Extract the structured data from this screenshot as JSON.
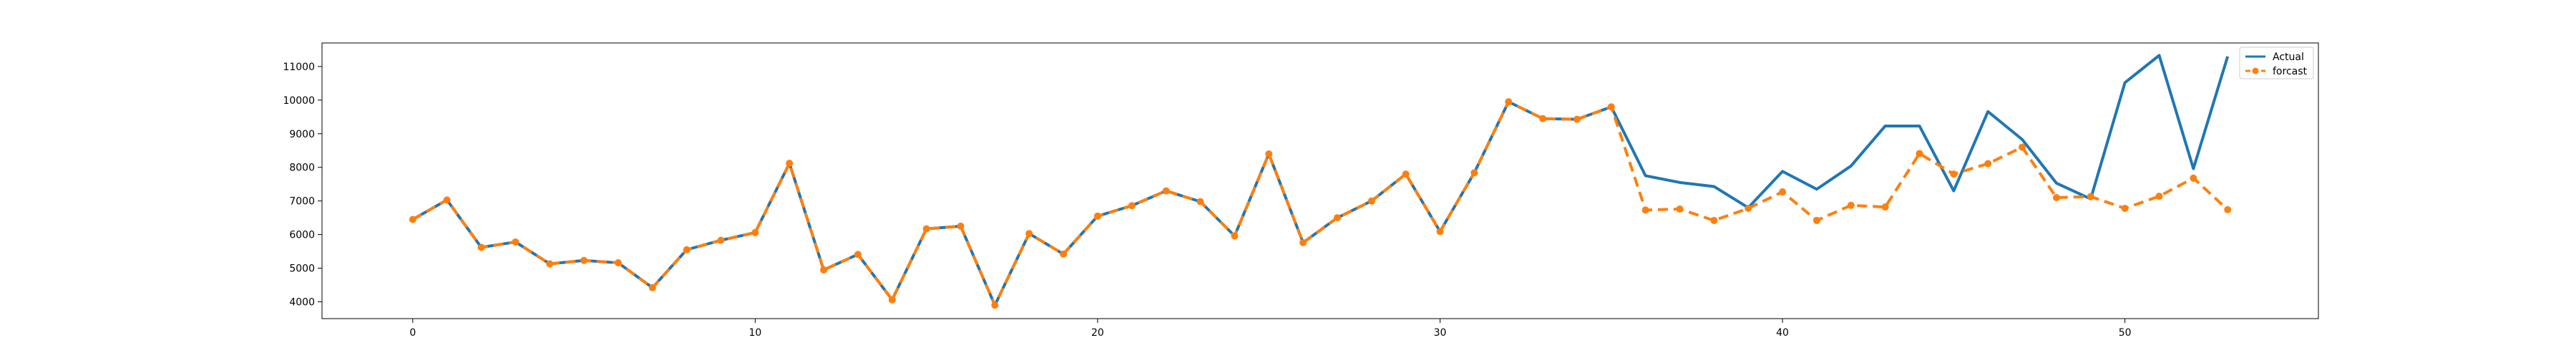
{
  "chart_data": {
    "type": "line",
    "title": "",
    "xlabel": "",
    "ylabel": "",
    "x": [
      0,
      1,
      2,
      3,
      4,
      5,
      6,
      7,
      8,
      9,
      10,
      11,
      12,
      13,
      14,
      15,
      16,
      17,
      18,
      19,
      20,
      21,
      22,
      23,
      24,
      25,
      26,
      27,
      28,
      29,
      30,
      31,
      32,
      33,
      34,
      35,
      36,
      37,
      38,
      39,
      40,
      41,
      42,
      43,
      44,
      45,
      46,
      47,
      48,
      49,
      50,
      51,
      52,
      53
    ],
    "xlim": [
      -2.65,
      55.65
    ],
    "ylim": [
      3500,
      11700
    ],
    "xticks": [
      0,
      10,
      20,
      30,
      40,
      50
    ],
    "yticks": [
      4000,
      5000,
      6000,
      7000,
      8000,
      9000,
      10000,
      11000
    ],
    "grid": false,
    "legend_position": "top-right",
    "series": [
      {
        "name": "Actual",
        "color": "#1f77b4",
        "style": "solid",
        "values": [
          6450,
          7030,
          5620,
          5780,
          5130,
          5230,
          5160,
          4420,
          5550,
          5830,
          6060,
          8120,
          4950,
          5410,
          4060,
          6170,
          6250,
          3900,
          6030,
          5420,
          6550,
          6860,
          7300,
          6980,
          5960,
          8400,
          5760,
          6500,
          7000,
          7800,
          6090,
          7840,
          9950,
          9450,
          9430,
          9800,
          7750,
          7550,
          7430,
          6800,
          7880,
          7350,
          8040,
          9230,
          9230,
          7300,
          9660,
          8830,
          7530,
          7060,
          10520,
          11330,
          7960,
          11300
        ]
      },
      {
        "name": "forcast",
        "color": "#ff7f0e",
        "style": "dashed",
        "marker": "circle",
        "values": [
          6450,
          7030,
          5620,
          5780,
          5130,
          5230,
          5160,
          4420,
          5550,
          5830,
          6060,
          8120,
          4950,
          5410,
          4060,
          6170,
          6250,
          3900,
          6030,
          5420,
          6550,
          6860,
          7300,
          6980,
          5960,
          8400,
          5760,
          6500,
          7000,
          7800,
          6090,
          7840,
          9950,
          9450,
          9430,
          9800,
          6730,
          6760,
          6420,
          6780,
          7270,
          6420,
          6870,
          6820,
          8410,
          7800,
          8110,
          8600,
          7100,
          7130,
          6780,
          7140,
          7680,
          6740
        ]
      }
    ]
  }
}
